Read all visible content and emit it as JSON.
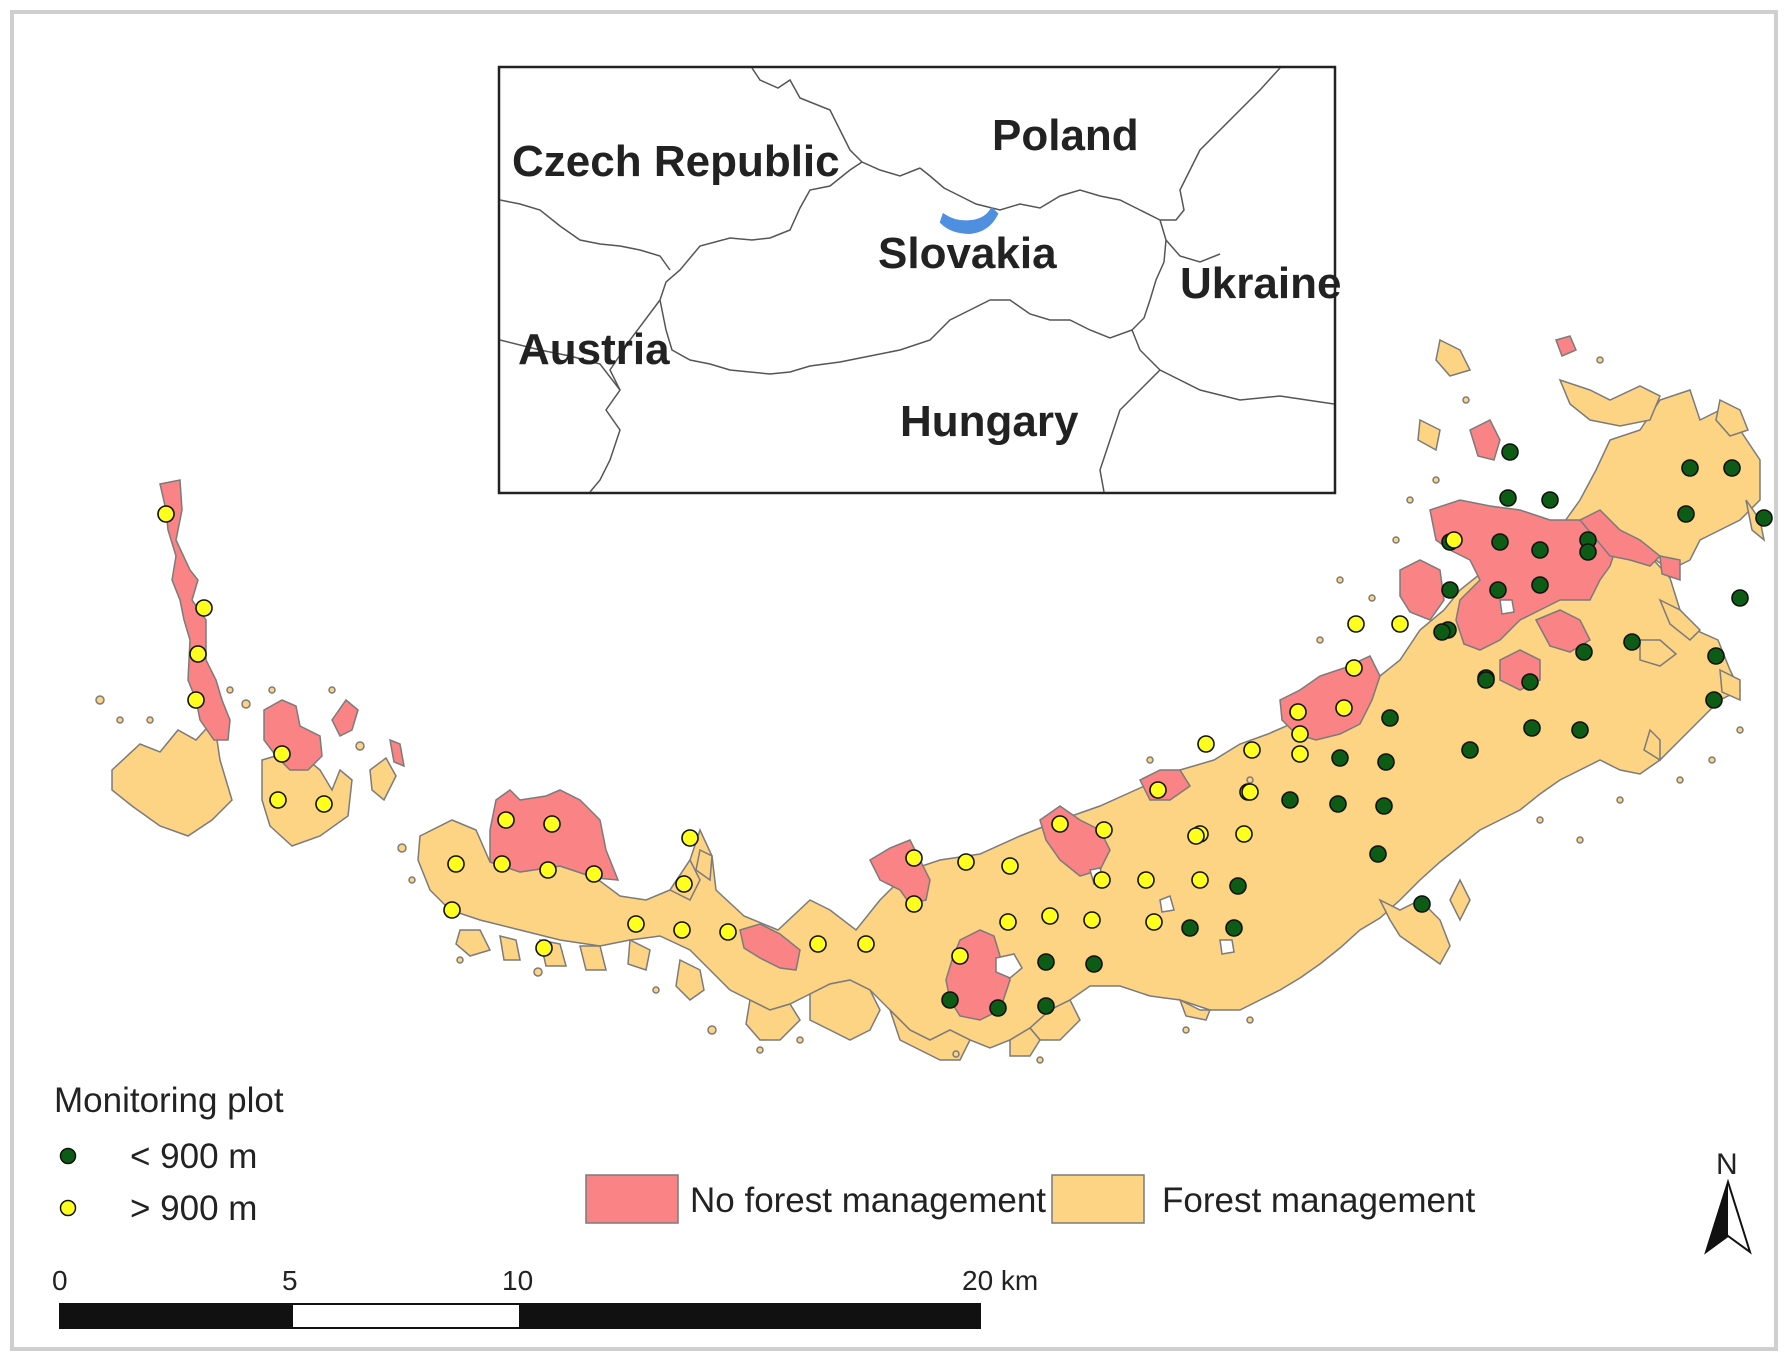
{
  "inset": {
    "countries": [
      "Czech Republic",
      "Poland",
      "Slovakia",
      "Ukraine",
      "Austria",
      "Hungary"
    ]
  },
  "legend": {
    "plot_title": "Monitoring plot",
    "plot_low": "< 900 m",
    "plot_high": "> 900 m",
    "no_management": "No forest management",
    "management": "Forest management"
  },
  "scale": {
    "ticks": [
      "0",
      "5",
      "10",
      "20 km"
    ]
  },
  "north": "N",
  "colors": {
    "no_management": "#f98385",
    "management": "#fdd384",
    "plot_low": "#0d5c16",
    "plot_high": "#ffff1e",
    "study_area_inset": "#4f8fe0",
    "outline": "#7b7b7b"
  },
  "plots_low": [
    [
      1510,
      452
    ],
    [
      1508,
      498
    ],
    [
      1550,
      500
    ],
    [
      1588,
      540
    ],
    [
      1540,
      550
    ],
    [
      1500,
      542
    ],
    [
      1450,
      590
    ],
    [
      1498,
      590
    ],
    [
      1540,
      585
    ],
    [
      1588,
      552
    ],
    [
      1448,
      630
    ],
    [
      1450,
      542
    ],
    [
      1740,
      598
    ],
    [
      1764,
      518
    ],
    [
      1690,
      468
    ],
    [
      1686,
      514
    ],
    [
      1632,
      642
    ],
    [
      1584,
      652
    ],
    [
      1530,
      682
    ],
    [
      1486,
      678
    ],
    [
      1442,
      632
    ],
    [
      1580,
      730
    ],
    [
      1532,
      728
    ],
    [
      1486,
      680
    ],
    [
      1470,
      750
    ],
    [
      1390,
      718
    ],
    [
      1386,
      762
    ],
    [
      1384,
      806
    ],
    [
      1340,
      758
    ],
    [
      1338,
      804
    ],
    [
      1290,
      800
    ],
    [
      1378,
      854
    ],
    [
      1422,
      904
    ],
    [
      1238,
      886
    ],
    [
      1234,
      928
    ],
    [
      1190,
      928
    ],
    [
      1094,
      964
    ],
    [
      1046,
      962
    ],
    [
      1046,
      1006
    ],
    [
      998,
      1008
    ],
    [
      950,
      1000
    ],
    [
      1714,
      700
    ],
    [
      1716,
      656
    ],
    [
      1732,
      468
    ]
  ],
  "plots_high": [
    [
      166,
      514
    ],
    [
      204,
      608
    ],
    [
      198,
      654
    ],
    [
      196,
      700
    ],
    [
      282,
      754
    ],
    [
      278,
      800
    ],
    [
      324,
      804
    ],
    [
      506,
      820
    ],
    [
      552,
      824
    ],
    [
      548,
      870
    ],
    [
      594,
      874
    ],
    [
      502,
      864
    ],
    [
      456,
      864
    ],
    [
      452,
      910
    ],
    [
      544,
      948
    ],
    [
      636,
      924
    ],
    [
      682,
      930
    ],
    [
      690,
      838
    ],
    [
      684,
      884
    ],
    [
      728,
      932
    ],
    [
      818,
      944
    ],
    [
      866,
      944
    ],
    [
      914,
      858
    ],
    [
      966,
      862
    ],
    [
      1010,
      866
    ],
    [
      1060,
      824
    ],
    [
      1104,
      830
    ],
    [
      1102,
      880
    ],
    [
      1154,
      922
    ],
    [
      1200,
      880
    ],
    [
      1158,
      790
    ],
    [
      1206,
      744
    ],
    [
      1252,
      750
    ],
    [
      1248,
      792
    ],
    [
      1200,
      834
    ],
    [
      1300,
      734
    ],
    [
      1344,
      708
    ],
    [
      1300,
      754
    ],
    [
      1356,
      624
    ],
    [
      1400,
      624
    ],
    [
      1354,
      668
    ],
    [
      1298,
      712
    ],
    [
      1244,
      834
    ],
    [
      1196,
      836
    ],
    [
      1454,
      540
    ],
    [
      1250,
      792
    ],
    [
      1092,
      920
    ],
    [
      1050,
      916
    ],
    [
      1146,
      880
    ],
    [
      914,
      904
    ],
    [
      1008,
      922
    ],
    [
      960,
      956
    ]
  ]
}
